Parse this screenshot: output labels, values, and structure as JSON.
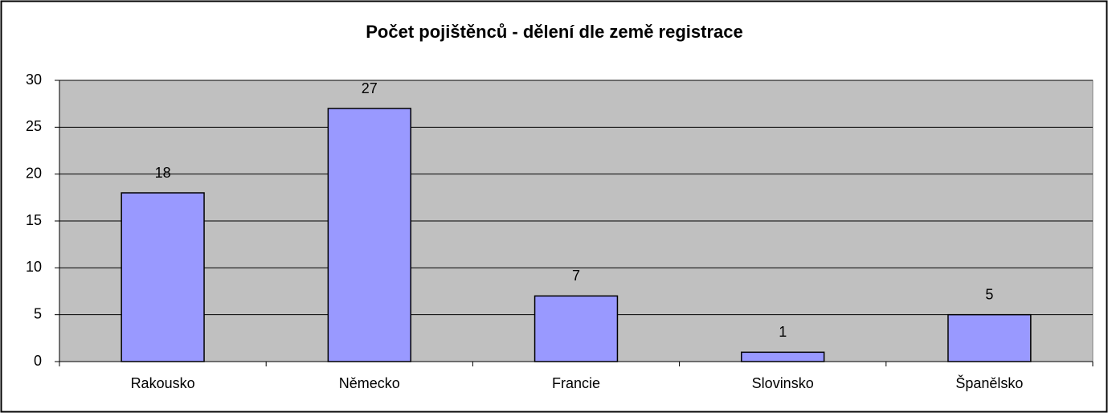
{
  "chart_data": {
    "type": "bar",
    "title": "Počet pojištěnců - dělení dle země registrace",
    "categories": [
      "Rakousko",
      "Německo",
      "Francie",
      "Slovinsko",
      "Španělsko"
    ],
    "values": [
      18,
      27,
      7,
      1,
      5
    ],
    "color": "#9999ff",
    "ylim": [
      0,
      30
    ],
    "yticks": [
      0,
      5,
      10,
      15,
      20,
      25,
      30
    ],
    "grid": true
  }
}
